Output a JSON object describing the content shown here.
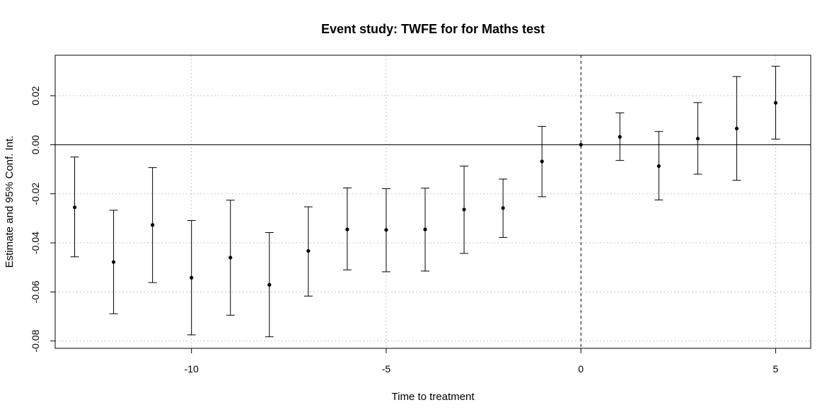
{
  "chart_data": {
    "type": "scatter",
    "title": "Event study: TWFE for for Maths test",
    "xlabel": "Time to treatment",
    "ylabel": "Estimate and 95% Conf. Int.",
    "xlim": [
      -13.5,
      5.9
    ],
    "ylim": [
      -0.083,
      0.0365
    ],
    "x_ticks": [
      -10,
      -5,
      0,
      5
    ],
    "x_tick_labels": [
      "-10",
      "-5",
      "0",
      "5"
    ],
    "y_ticks": [
      -0.08,
      -0.06,
      -0.04,
      -0.02,
      0.0,
      0.02
    ],
    "y_tick_labels": [
      "-0.08",
      "-0.06",
      "-0.04",
      "-0.02",
      "0.00",
      "0.02"
    ],
    "grid": true,
    "reference_lines": {
      "horizontal_y": 0,
      "vertical_x_dashed": 0
    },
    "points": [
      {
        "x": -13,
        "estimate": -0.0255,
        "ci_low": -0.0457,
        "ci_high": -0.005
      },
      {
        "x": -12,
        "estimate": -0.0478,
        "ci_low": -0.0689,
        "ci_high": -0.0267
      },
      {
        "x": -11,
        "estimate": -0.0327,
        "ci_low": -0.0562,
        "ci_high": -0.0093
      },
      {
        "x": -10,
        "estimate": -0.0542,
        "ci_low": -0.0775,
        "ci_high": -0.0309
      },
      {
        "x": -9,
        "estimate": -0.046,
        "ci_low": -0.0695,
        "ci_high": -0.0226
      },
      {
        "x": -8,
        "estimate": -0.0571,
        "ci_low": -0.0783,
        "ci_high": -0.0358
      },
      {
        "x": -7,
        "estimate": -0.0433,
        "ci_low": -0.0617,
        "ci_high": -0.0253
      },
      {
        "x": -6,
        "estimate": -0.0345,
        "ci_low": -0.051,
        "ci_high": -0.0176
      },
      {
        "x": -5,
        "estimate": -0.0347,
        "ci_low": -0.0518,
        "ci_high": -0.0179
      },
      {
        "x": -4,
        "estimate": -0.0345,
        "ci_low": -0.0515,
        "ci_high": -0.0177
      },
      {
        "x": -3,
        "estimate": -0.0264,
        "ci_low": -0.0443,
        "ci_high": -0.0087
      },
      {
        "x": -2,
        "estimate": -0.0258,
        "ci_low": -0.0378,
        "ci_high": -0.014
      },
      {
        "x": -1,
        "estimate": -0.0068,
        "ci_low": -0.0212,
        "ci_high": 0.0075
      },
      {
        "x": 0,
        "estimate": 0.0,
        "ci_low": 0.0,
        "ci_high": 0.0
      },
      {
        "x": 1,
        "estimate": 0.0032,
        "ci_low": -0.0064,
        "ci_high": 0.013
      },
      {
        "x": 2,
        "estimate": -0.0087,
        "ci_low": -0.0225,
        "ci_high": 0.0054
      },
      {
        "x": 3,
        "estimate": 0.0025,
        "ci_low": -0.012,
        "ci_high": 0.0172
      },
      {
        "x": 4,
        "estimate": 0.0066,
        "ci_low": -0.0145,
        "ci_high": 0.0278
      },
      {
        "x": 5,
        "estimate": 0.0171,
        "ci_low": 0.0023,
        "ci_high": 0.032
      }
    ]
  }
}
